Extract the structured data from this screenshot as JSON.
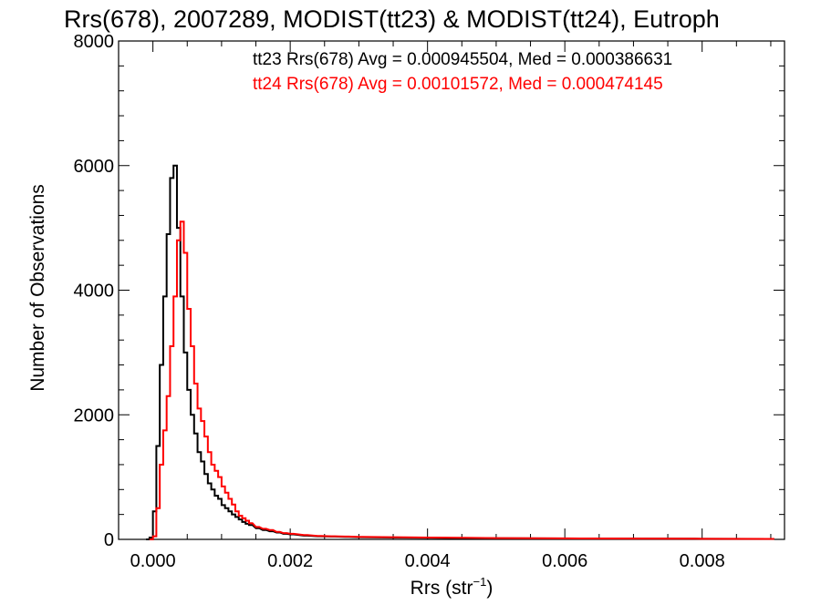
{
  "chart_data": {
    "type": "histogram",
    "title": "Rrs(678), 2007289, MODIST(tt23) & MODIST(tt24), Eutroph",
    "xlabel": "Rrs (str",
    "xlabel_superscript": "−1",
    "xlabel_suffix": ")",
    "ylabel": "Number of Observations",
    "xlim": [
      -0.0005,
      0.0092
    ],
    "ylim": [
      0,
      8000
    ],
    "x_ticks": [
      0.0,
      0.002,
      0.004,
      0.006,
      0.008
    ],
    "x_tick_labels": [
      "0.000",
      "0.002",
      "0.004",
      "0.006",
      "0.008"
    ],
    "y_ticks": [
      0,
      2000,
      4000,
      6000,
      8000
    ],
    "y_tick_labels": [
      "0",
      "2000",
      "4000",
      "6000",
      "8000"
    ],
    "grid": false,
    "legend_placement": "top-right",
    "bin_width": 5e-05,
    "series": [
      {
        "name": "tt23",
        "color": "#000000",
        "legend_text": "tt23 Rrs(678) Avg = 0.000945504, Med = 0.000386631",
        "x": [
          -0.0001,
          -5e-05,
          0.0,
          5e-05,
          0.0001,
          0.00015,
          0.0002,
          0.00025,
          0.0003,
          0.00035,
          0.0004,
          0.00045,
          0.0005,
          0.00055,
          0.0006,
          0.00065,
          0.0007,
          0.00075,
          0.0008,
          0.00085,
          0.0009,
          0.00095,
          0.001,
          0.00105,
          0.0011,
          0.00115,
          0.0012,
          0.00125,
          0.0013,
          0.00135,
          0.0014,
          0.0015,
          0.0016,
          0.0017,
          0.0018,
          0.0019,
          0.002,
          0.0022,
          0.0024,
          0.0026,
          0.0028,
          0.003,
          0.0035,
          0.004,
          0.0045,
          0.005,
          0.006,
          0.007,
          0.008,
          0.009
        ],
        "y": [
          0,
          30,
          450,
          1500,
          2800,
          3900,
          4900,
          5800,
          6000,
          5000,
          3900,
          3000,
          2400,
          2000,
          1700,
          1400,
          1250,
          1050,
          900,
          800,
          700,
          650,
          550,
          500,
          450,
          400,
          360,
          320,
          280,
          250,
          230,
          180,
          150,
          130,
          110,
          90,
          80,
          60,
          50,
          45,
          40,
          35,
          30,
          25,
          20,
          18,
          15,
          12,
          10,
          8
        ]
      },
      {
        "name": "tt24",
        "color": "#ff0000",
        "legend_text": "tt24 Rrs(678) Avg = 0.00101572, Med = 0.000474145",
        "x": [
          -5e-05,
          0.0,
          5e-05,
          0.0001,
          0.00015,
          0.0002,
          0.00025,
          0.0003,
          0.00035,
          0.0004,
          0.00045,
          0.0005,
          0.00055,
          0.0006,
          0.00065,
          0.0007,
          0.00075,
          0.0008,
          0.00085,
          0.0009,
          0.00095,
          0.001,
          0.00105,
          0.0011,
          0.00115,
          0.0012,
          0.00125,
          0.0013,
          0.00135,
          0.0014,
          0.0015,
          0.0016,
          0.0017,
          0.0018,
          0.0019,
          0.002,
          0.0022,
          0.0024,
          0.0026,
          0.0028,
          0.003,
          0.0035,
          0.004,
          0.0045,
          0.005,
          0.006,
          0.007,
          0.008,
          0.009
        ],
        "y": [
          0,
          50,
          500,
          1200,
          1750,
          2300,
          3100,
          3900,
          4800,
          5100,
          4600,
          3700,
          3100,
          2500,
          2100,
          1900,
          1650,
          1400,
          1200,
          1100,
          1000,
          850,
          750,
          650,
          560,
          450,
          380,
          340,
          300,
          260,
          200,
          170,
          150,
          120,
          100,
          90,
          70,
          55,
          50,
          45,
          40,
          35,
          30,
          25,
          20,
          16,
          12,
          10,
          8
        ]
      }
    ]
  }
}
